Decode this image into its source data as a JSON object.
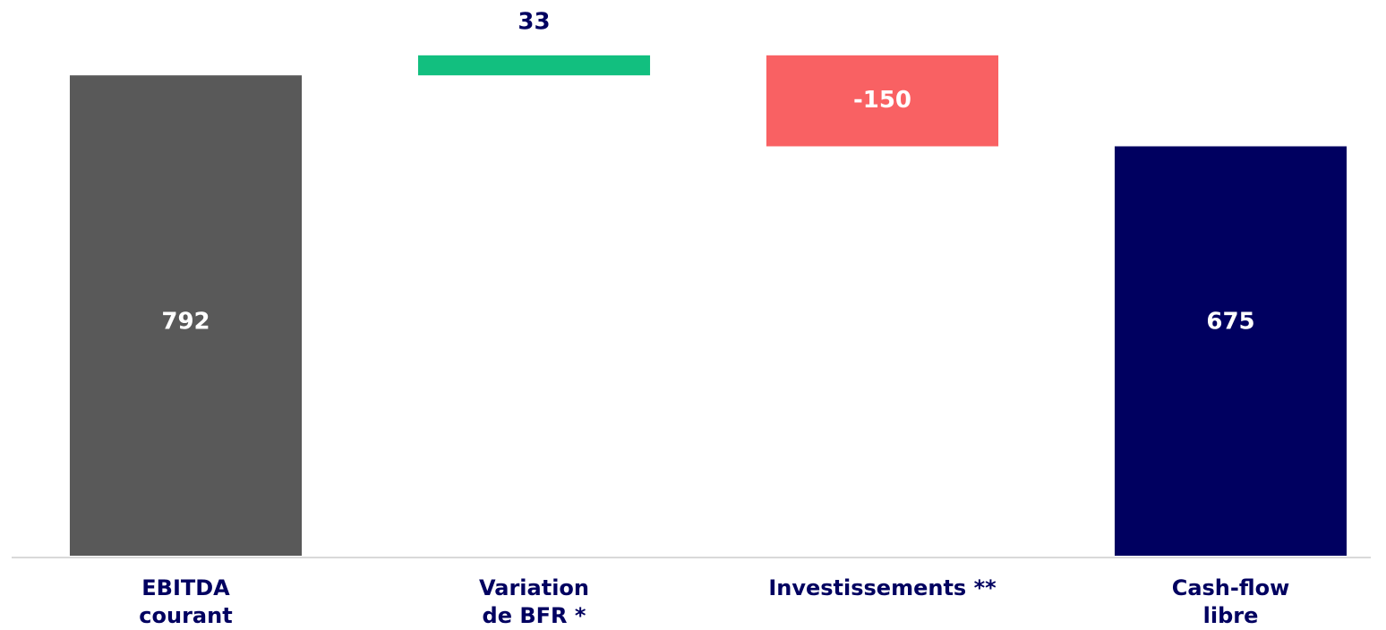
{
  "chart_data": {
    "type": "waterfall",
    "categories": [
      "EBITDA\ncourant",
      "Variation\nde BFR *",
      "Investissements **",
      "Cash-flow\nlibre"
    ],
    "values": [
      792,
      33,
      -150,
      675
    ],
    "measure": [
      "absolute",
      "relative",
      "relative",
      "absolute"
    ],
    "colors": [
      "#595959",
      "#12bf7f",
      "#f96163",
      "#000060"
    ],
    "ylim": [
      0,
      900
    ]
  }
}
